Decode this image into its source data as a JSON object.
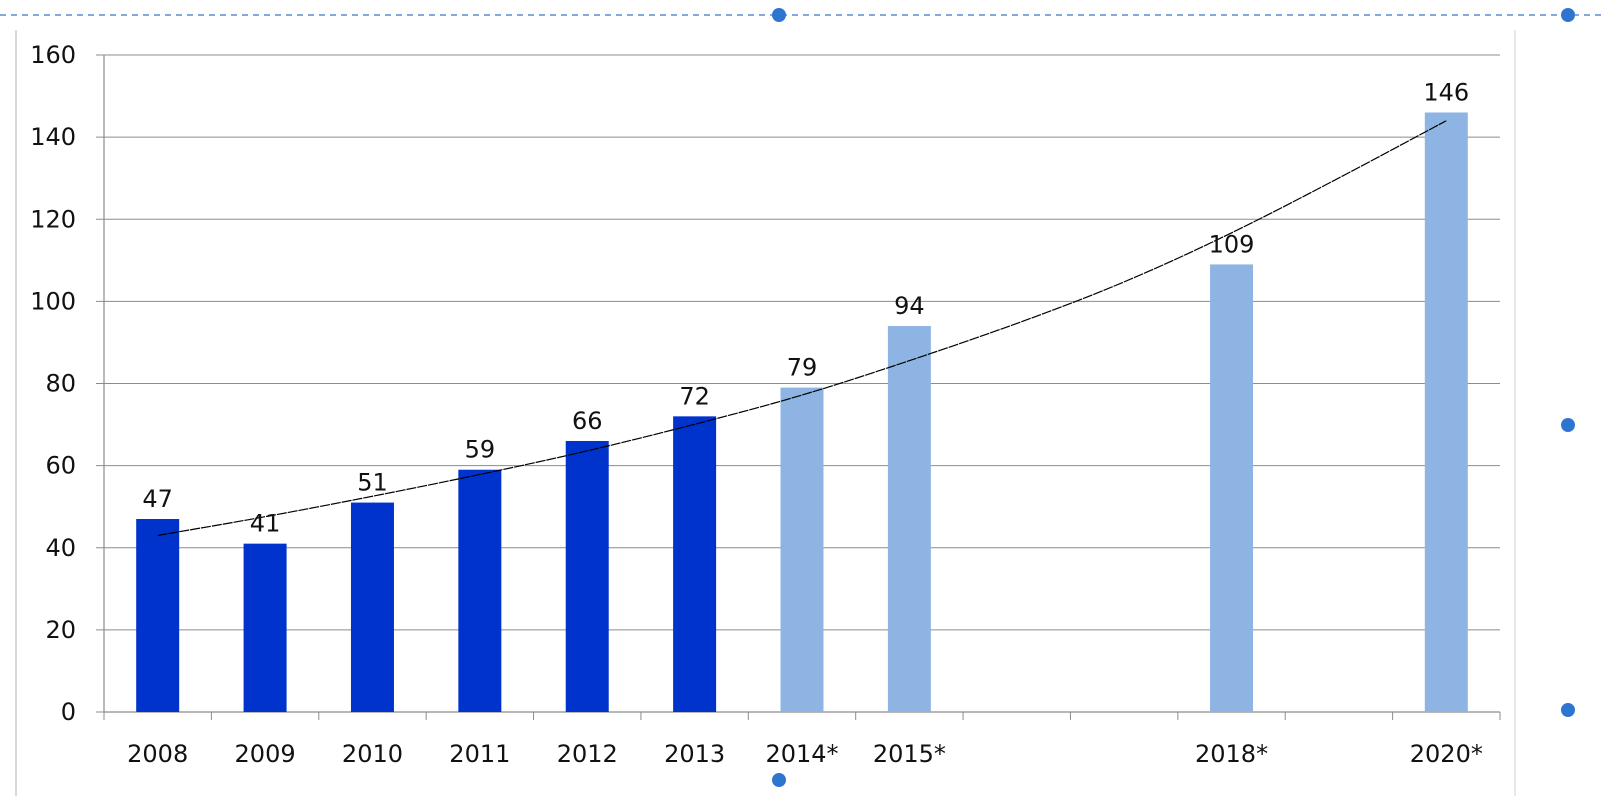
{
  "chart_data": {
    "type": "bar",
    "title": "",
    "xlabel": "",
    "ylabel": "",
    "ylim": [
      0,
      160
    ],
    "yticks": [
      0,
      20,
      40,
      60,
      80,
      100,
      120,
      140,
      160
    ],
    "grid": true,
    "legend": "none",
    "slots": [
      "2008",
      "2009",
      "2010",
      "2011",
      "2012",
      "2013",
      "2014*",
      "2015*",
      "",
      "",
      "2018*",
      "",
      "2020*"
    ],
    "categories": [
      "2008",
      "2009",
      "2010",
      "2011",
      "2012",
      "2013",
      "2014*",
      "2015*",
      "2018*",
      "2020*"
    ],
    "values": [
      47,
      41,
      51,
      59,
      66,
      72,
      79,
      94,
      109,
      146
    ],
    "value_labels": [
      "47",
      "41",
      "51",
      "59",
      "66",
      "72",
      "79",
      "94",
      "109",
      "146"
    ],
    "actual_color": "#0033CC",
    "forecast_color": "#8EB4E3",
    "forecast_from_index": 6,
    "trendline": {
      "type": "exponential",
      "x_slots": [
        0,
        1,
        2,
        3,
        4,
        5,
        6,
        7,
        8,
        9,
        10,
        11,
        12
      ],
      "y": [
        43,
        47.5,
        52.5,
        57.8,
        63.5,
        70,
        77,
        85.5,
        94.5,
        104.5,
        116.5,
        130,
        144
      ]
    }
  },
  "colors": {
    "gridline": "#8C8C8C",
    "axis": "#8C8C8C",
    "selection_handle": "#2E75D0",
    "selection_border": "#5B8BD0"
  }
}
